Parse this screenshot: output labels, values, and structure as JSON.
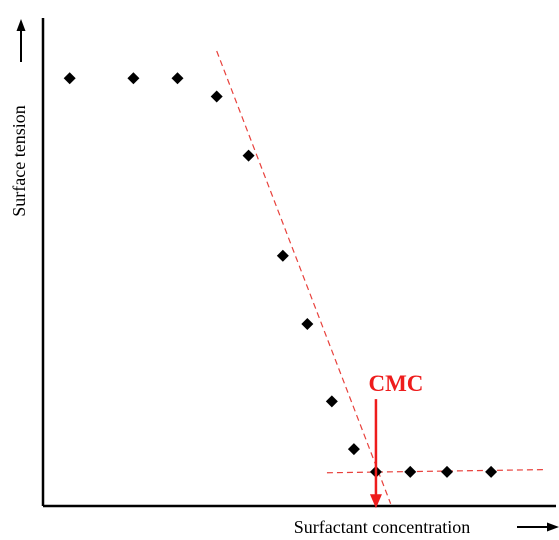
{
  "chart_data": {
    "type": "scatter",
    "title": "",
    "xlabel": "Surfactant concentration",
    "ylabel": "Surface tension",
    "xlim": [
      0,
      10
    ],
    "ylim": [
      0,
      10
    ],
    "grid": false,
    "ticks": false,
    "axis_arrows": true,
    "series": [
      {
        "marker": "diamond",
        "color": "#000000",
        "x": [
          0.3,
          1.6,
          2.5,
          3.3,
          3.95,
          4.65,
          5.15,
          5.65,
          6.1,
          6.55,
          7.25,
          8.0,
          8.9
        ],
        "y": [
          9.4,
          9.4,
          9.4,
          9.0,
          7.7,
          5.5,
          4.0,
          2.3,
          1.25,
          0.75,
          0.75,
          0.75,
          0.75
        ]
      }
    ],
    "fit_lines": [
      {
        "style": "dashed",
        "color": "#e8413c",
        "points": [
          [
            3.3,
            10.0
          ],
          [
            6.85,
            0.05
          ]
        ]
      },
      {
        "style": "dashed",
        "color": "#e8413c",
        "points": [
          [
            5.55,
            0.73
          ],
          [
            10.0,
            0.8
          ]
        ]
      }
    ],
    "annotations": [
      {
        "text": "CMC",
        "color": "#ee1c1c",
        "x": 6.55,
        "arrow_from_y": 2.35,
        "arrow_to_y": -0.05
      }
    ]
  }
}
